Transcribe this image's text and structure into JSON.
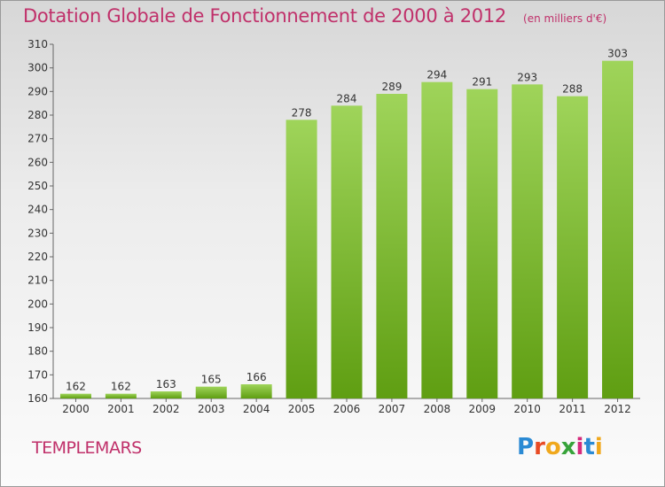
{
  "header": {
    "title": "Dotation Globale de Fonctionnement de 2000 à 2012",
    "unit": "(en milliers d'€)"
  },
  "footer": {
    "commune": "TEMPLEMARS",
    "logo_text": "Proxiti"
  },
  "colors": {
    "title": "#c0306a",
    "bar_light": "#9fd45a",
    "bar_dark": "#5f9e12",
    "logo": [
      "#2a8ad4",
      "#e84b24",
      "#f0a81c",
      "#37a33a",
      "#d52b7c",
      "#2a8ad4",
      "#f0a81c"
    ]
  },
  "chart_data": {
    "type": "bar",
    "categories": [
      "2000",
      "2001",
      "2002",
      "2003",
      "2004",
      "2005",
      "2006",
      "2007",
      "2008",
      "2009",
      "2010",
      "2011",
      "2012"
    ],
    "values": [
      162,
      162,
      163,
      165,
      166,
      278,
      284,
      289,
      294,
      291,
      293,
      288,
      303
    ],
    "ylim": [
      160,
      310
    ],
    "yticks": [
      160,
      170,
      180,
      190,
      200,
      210,
      220,
      230,
      240,
      250,
      260,
      270,
      280,
      290,
      300,
      310
    ],
    "grid": false,
    "legend": "none",
    "data_labels": true
  }
}
